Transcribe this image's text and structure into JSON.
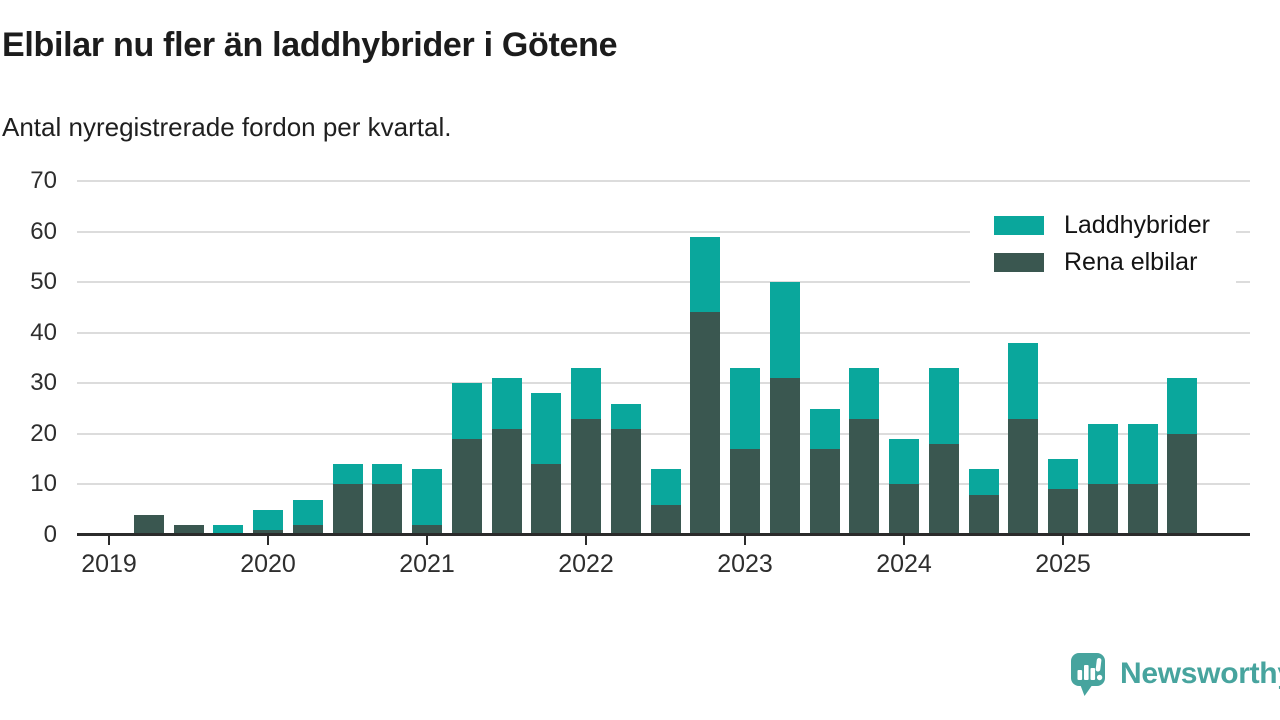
{
  "title": "Elbilar nu fler än laddhybrider i Götene",
  "subtitle": "Antal nyregistrerade fordon per kvartal.",
  "legend": {
    "items": [
      {
        "label": "Laddhybrider",
        "color": "#0aa79c"
      },
      {
        "label": "Rena elbilar",
        "color": "#3a5750"
      }
    ]
  },
  "footer": {
    "brand": "Newsworthy",
    "logo_color": "#47a49e"
  },
  "colors": {
    "laddhybrider": "#0aa79c",
    "rena_elbilar": "#3a5750",
    "gridline": "#dcdcdc",
    "axis": "#2b2b2b"
  },
  "chart_data": {
    "type": "bar",
    "stacked": true,
    "title": "Elbilar nu fler än laddhybrider i Götene",
    "subtitle": "Antal nyregistrerade fordon per kvartal.",
    "categories": [
      "2019 Q1",
      "2019 Q2",
      "2019 Q3",
      "2019 Q4",
      "2020 Q1",
      "2020 Q2",
      "2020 Q3",
      "2020 Q4",
      "2021 Q1",
      "2021 Q2",
      "2021 Q3",
      "2021 Q4",
      "2022 Q1",
      "2022 Q2",
      "2022 Q3",
      "2022 Q4",
      "2023 Q1",
      "2023 Q2",
      "2023 Q3",
      "2023 Q4",
      "2024 Q1",
      "2024 Q2",
      "2024 Q3",
      "2024 Q4",
      "2025 Q1",
      "2025 Q2",
      "2025 Q3",
      "2025 Q4"
    ],
    "series": [
      {
        "name": "Rena elbilar",
        "color": "#3a5750",
        "stack": "bottom",
        "values": [
          0,
          4,
          2,
          0,
          1,
          2,
          10,
          10,
          2,
          19,
          21,
          14,
          23,
          21,
          6,
          44,
          17,
          31,
          17,
          23,
          10,
          18,
          8,
          23,
          9,
          10,
          10,
          20
        ]
      },
      {
        "name": "Laddhybrider",
        "color": "#0aa79c",
        "stack": "top",
        "values": [
          0,
          0,
          0,
          2,
          4,
          5,
          4,
          4,
          11,
          11,
          10,
          14,
          10,
          5,
          7,
          15,
          16,
          19,
          8,
          10,
          9,
          15,
          5,
          15,
          6,
          12,
          12,
          11
        ]
      }
    ],
    "totals": [
      0,
      4,
      2,
      2,
      5,
      7,
      14,
      14,
      13,
      30,
      31,
      28,
      33,
      26,
      13,
      59,
      33,
      50,
      25,
      33,
      19,
      33,
      13,
      38,
      15,
      22,
      22,
      31
    ],
    "x_year_ticks": [
      "2019",
      "2020",
      "2021",
      "2022",
      "2023",
      "2024",
      "2025"
    ],
    "xlabel": "",
    "ylabel": "",
    "ylim": [
      0,
      70
    ],
    "yticks": [
      0,
      10,
      20,
      30,
      40,
      50,
      60,
      70
    ],
    "grid": true,
    "legend_position": "top-right"
  }
}
